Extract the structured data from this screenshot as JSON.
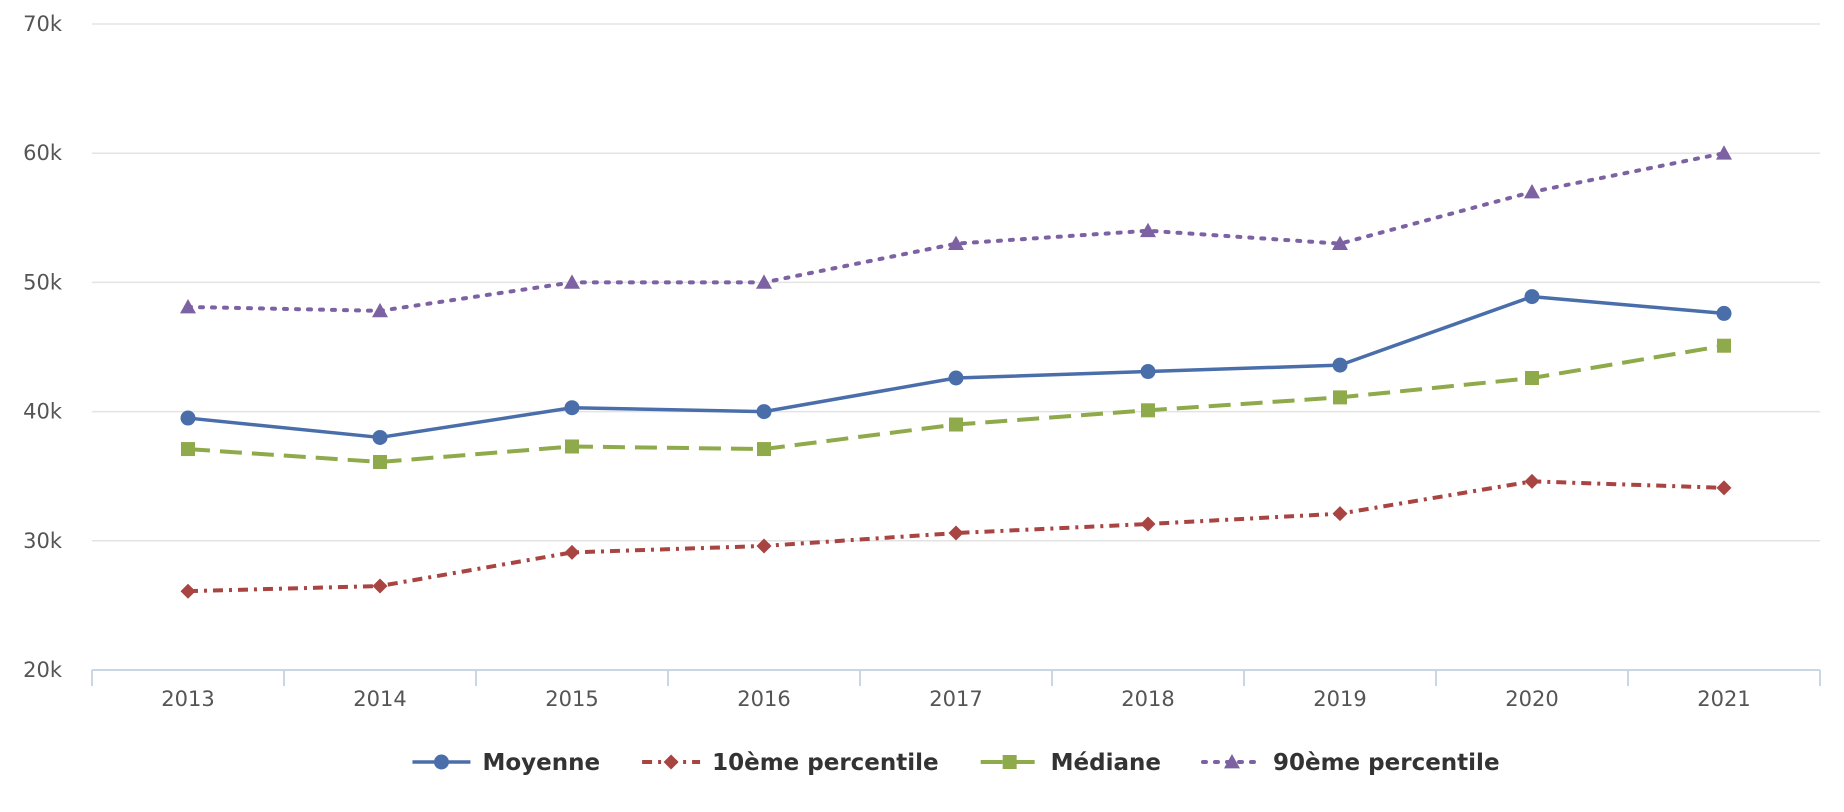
{
  "chart_data": {
    "type": "line",
    "title": "",
    "xlabel": "",
    "ylabel": "",
    "categories": [
      "2013",
      "2014",
      "2015",
      "2016",
      "2017",
      "2018",
      "2019",
      "2020",
      "2021"
    ],
    "ylim": [
      20000,
      70000
    ],
    "yticks": [
      20000,
      30000,
      40000,
      50000,
      60000,
      70000
    ],
    "ytick_labels": [
      "20k",
      "30k",
      "40k",
      "50k",
      "60k",
      "70k"
    ],
    "grid": true,
    "legend_position": "bottom-center",
    "series": [
      {
        "name": "Moyenne",
        "color": "#4a6eaa",
        "line_style": "solid",
        "marker": "circle",
        "values": [
          39500,
          38000,
          40300,
          40000,
          42600,
          43100,
          43600,
          48900,
          47600
        ]
      },
      {
        "name": "10ème percentile",
        "color": "#a84442",
        "line_style": "dash-dot",
        "marker": "diamond",
        "values": [
          26100,
          26500,
          29100,
          29600,
          30600,
          31300,
          32100,
          34600,
          34100
        ]
      },
      {
        "name": "Médiane",
        "color": "#8eaa4a",
        "line_style": "dashed",
        "marker": "square",
        "values": [
          37100,
          36100,
          37300,
          37100,
          39000,
          40100,
          41100,
          42600,
          45100
        ]
      },
      {
        "name": "90ème percentile",
        "color": "#7d62a3",
        "line_style": "dotted",
        "marker": "triangle",
        "values": [
          48100,
          47800,
          50000,
          50000,
          53000,
          54000,
          53000,
          57000,
          60000
        ]
      }
    ]
  }
}
